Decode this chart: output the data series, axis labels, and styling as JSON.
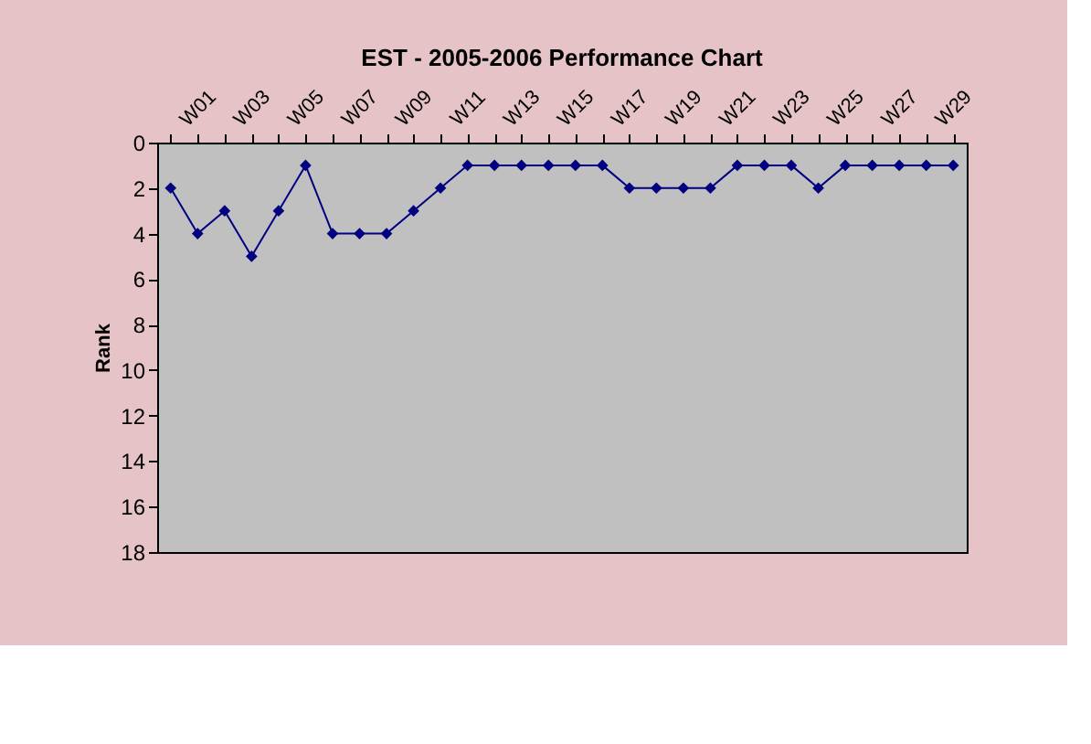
{
  "chart_data": {
    "type": "line",
    "title": "EST - 2005-2006 Performance Chart",
    "ylabel": "Rank",
    "categories": [
      null,
      "W01",
      null,
      "W03",
      null,
      "W05",
      null,
      "W07",
      null,
      "W09",
      null,
      "W11",
      null,
      "W13",
      null,
      "W15",
      null,
      "W17",
      null,
      "W19",
      null,
      "W21",
      null,
      "W23",
      null,
      "W25",
      null,
      "W27",
      null,
      "W29"
    ],
    "series": [
      {
        "color": "#000080",
        "values": [
          2,
          4,
          3,
          5,
          3,
          1,
          4,
          4,
          4,
          3,
          2,
          1,
          1,
          1,
          1,
          1,
          1,
          2,
          2,
          2,
          2,
          1,
          1,
          1,
          2,
          1,
          1,
          1,
          1,
          1
        ]
      }
    ],
    "ylim": [
      18,
      0
    ],
    "yticks": [
      0,
      2,
      4,
      6,
      8,
      10,
      12,
      14,
      16,
      18
    ],
    "grid": false,
    "marker": "diamond",
    "line_style": "solid"
  }
}
